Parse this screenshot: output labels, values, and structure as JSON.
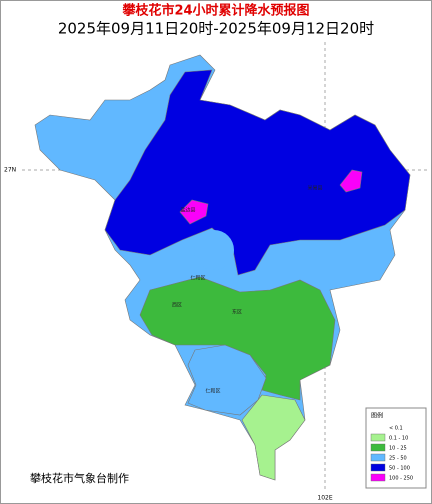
{
  "title": "攀枝花市24小时累计降水预报图",
  "subtitle": "2025年09月11日20时-2025年09月12日20时",
  "lat_label": "27N",
  "lon_label": "102E",
  "place_labels": [
    "盐边县",
    "米易县",
    "仁和区",
    "西区",
    "东区",
    "仁和区"
  ],
  "legend": {
    "title": "图例",
    "items": [
      {
        "label": "< 0.1",
        "color": "#ffffff"
      },
      {
        "label": "0.1 - 10",
        "color": "#a6f28f"
      },
      {
        "label": "10 - 25",
        "color": "#3dba3d"
      },
      {
        "label": "25 - 50",
        "color": "#61b8ff"
      },
      {
        "label": "50 - 100",
        "color": "#0000e1"
      },
      {
        "label": "100 - 250",
        "color": "#fa00fa"
      }
    ]
  },
  "footer": "攀枝花市气象台制作"
}
